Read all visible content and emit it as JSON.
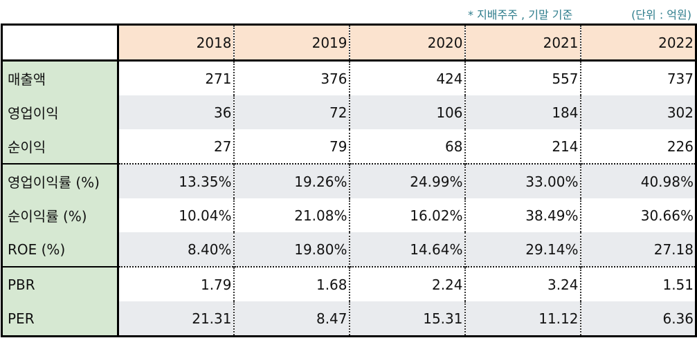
{
  "notes": {
    "basis": "* 지배주주 , 기말 기준",
    "unit": "(단위 : 억원)"
  },
  "table": {
    "years": [
      "2018",
      "2019",
      "2020",
      "2021",
      "2022"
    ],
    "rows": [
      {
        "label": "매출액",
        "values": [
          "271",
          "376",
          "424",
          "557",
          "737"
        ]
      },
      {
        "label": "영업이익",
        "values": [
          "36",
          "72",
          "106",
          "184",
          "302"
        ]
      },
      {
        "label": "순이익",
        "values": [
          "27",
          "79",
          "68",
          "214",
          "226"
        ]
      },
      {
        "label": "영업이익률 (%)",
        "values": [
          "13.35%",
          "19.26%",
          "24.99%",
          "33.00%",
          "40.98%"
        ]
      },
      {
        "label": "순이익률 (%)",
        "values": [
          "10.04%",
          "21.08%",
          "16.02%",
          "38.49%",
          "30.66%"
        ]
      },
      {
        "label": "ROE (%)",
        "values": [
          "8.40%",
          "19.80%",
          "14.64%",
          "29.14%",
          "27.18"
        ]
      },
      {
        "label": "PBR",
        "values": [
          "1.79",
          "1.68",
          "2.24",
          "3.24",
          "1.51"
        ]
      },
      {
        "label": "PER",
        "values": [
          "21.31",
          "8.47",
          "15.31",
          "11.12",
          "6.36"
        ]
      }
    ]
  },
  "colors": {
    "header_bg": "#fbe3cf",
    "label_bg": "#d6e8d2",
    "stripe_bg": "#e9ebee",
    "note_text": "#2e7d8c"
  }
}
